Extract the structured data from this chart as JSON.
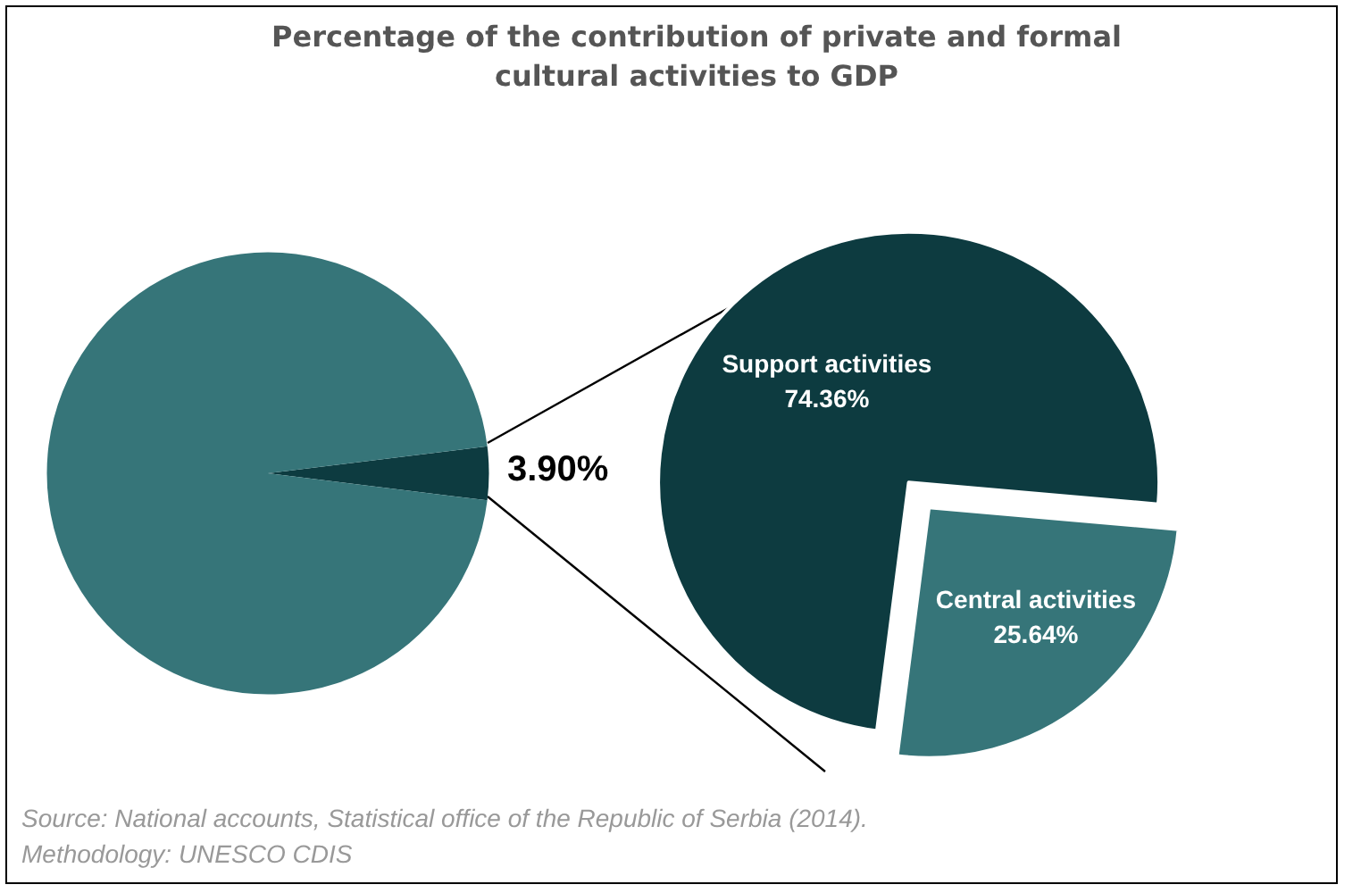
{
  "chart_data": [
    {
      "type": "pie",
      "title": "Percentage of the contribution of private and formal cultural activities to GDP",
      "categories": [
        null,
        null
      ],
      "values": [
        3.9,
        96.1
      ],
      "colors": [
        "#0d3b40",
        "#367579"
      ],
      "value_labels": [
        "3.90%",
        null
      ],
      "legend": false,
      "annotations": [
        "Source: National accounts, Statistical office of the Republic of Serbia (2014).",
        "Methodology: UNESCO CDIS"
      ]
    },
    {
      "type": "pie",
      "categories": [
        "Support activities",
        "Central activities"
      ],
      "values": [
        74.36,
        25.64
      ],
      "colors": [
        "#0d3b40",
        "#367579"
      ],
      "value_labels": [
        "74.36%",
        "25.64%"
      ],
      "legend": false
    }
  ]
}
